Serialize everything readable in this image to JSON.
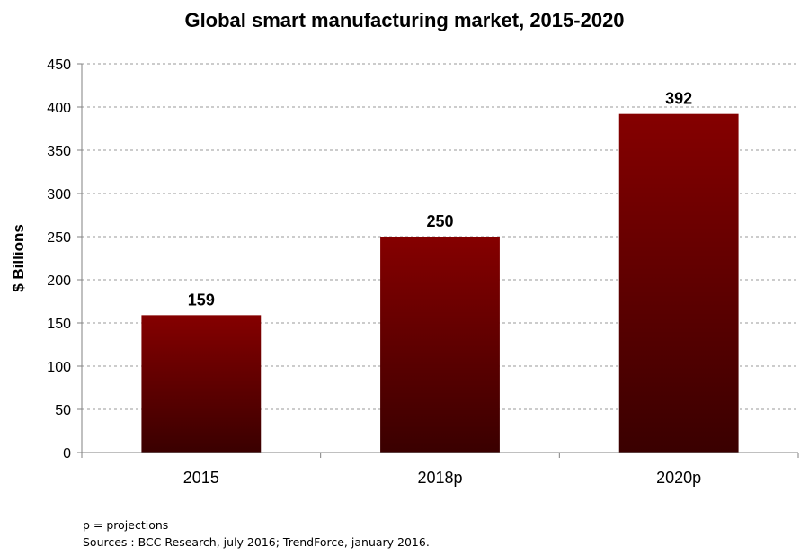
{
  "chart_data": {
    "type": "bar",
    "title": "Global smart manufacturing market, 2015-2020",
    "xlabel": "",
    "ylabel": "$ Billions",
    "categories": [
      "2015",
      "2018p",
      "2020p"
    ],
    "values": [
      159,
      250,
      392
    ],
    "data_labels": [
      "159",
      "250",
      "392"
    ],
    "ylim": [
      0,
      450
    ],
    "yticks": [
      0,
      50,
      100,
      150,
      200,
      250,
      300,
      350,
      400,
      450
    ],
    "grid": true,
    "legend": "none",
    "colors": {
      "bar_top": "#850000",
      "bar_bottom": "#3a0000",
      "grid": "#9a9a9a",
      "axis": "#808080"
    }
  },
  "notes": {
    "line1": "p = projections",
    "line2": "Sources : BCC Research, july 2016; TrendForce, january 2016."
  }
}
